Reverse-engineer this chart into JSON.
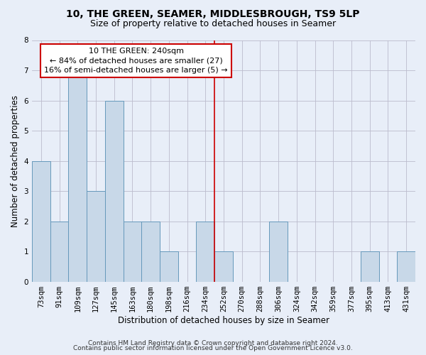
{
  "title1": "10, THE GREEN, SEAMER, MIDDLESBROUGH, TS9 5LP",
  "title2": "Size of property relative to detached houses in Seamer",
  "xlabel": "Distribution of detached houses by size in Seamer",
  "ylabel": "Number of detached properties",
  "categories": [
    "73sqm",
    "91sqm",
    "109sqm",
    "127sqm",
    "145sqm",
    "163sqm",
    "180sqm",
    "198sqm",
    "216sqm",
    "234sqm",
    "252sqm",
    "270sqm",
    "288sqm",
    "306sqm",
    "324sqm",
    "342sqm",
    "359sqm",
    "377sqm",
    "395sqm",
    "413sqm",
    "431sqm"
  ],
  "values": [
    4,
    2,
    7,
    3,
    6,
    2,
    2,
    1,
    0,
    2,
    1,
    0,
    0,
    2,
    0,
    0,
    0,
    0,
    1,
    0,
    1
  ],
  "bar_color": "#c8d8e8",
  "bar_edge_color": "#6699bb",
  "grid_color": "#bbbbcc",
  "background_color": "#e8eef8",
  "vline_x_index": 10,
  "vline_color": "#cc0000",
  "annotation_line1": "10 THE GREEN: 240sqm",
  "annotation_line2": "← 84% of detached houses are smaller (27)",
  "annotation_line3": "16% of semi-detached houses are larger (5) →",
  "annotation_box_edge_color": "#cc0000",
  "annotation_box_face_color": "#ffffff",
  "footnote1": "Contains HM Land Registry data © Crown copyright and database right 2024.",
  "footnote2": "Contains public sector information licensed under the Open Government Licence v3.0.",
  "ylim": [
    0,
    8
  ],
  "title1_fontsize": 10,
  "title2_fontsize": 9,
  "xlabel_fontsize": 8.5,
  "ylabel_fontsize": 8.5,
  "tick_fontsize": 7.5,
  "annotation_fontsize": 8,
  "footnote_fontsize": 6.5
}
